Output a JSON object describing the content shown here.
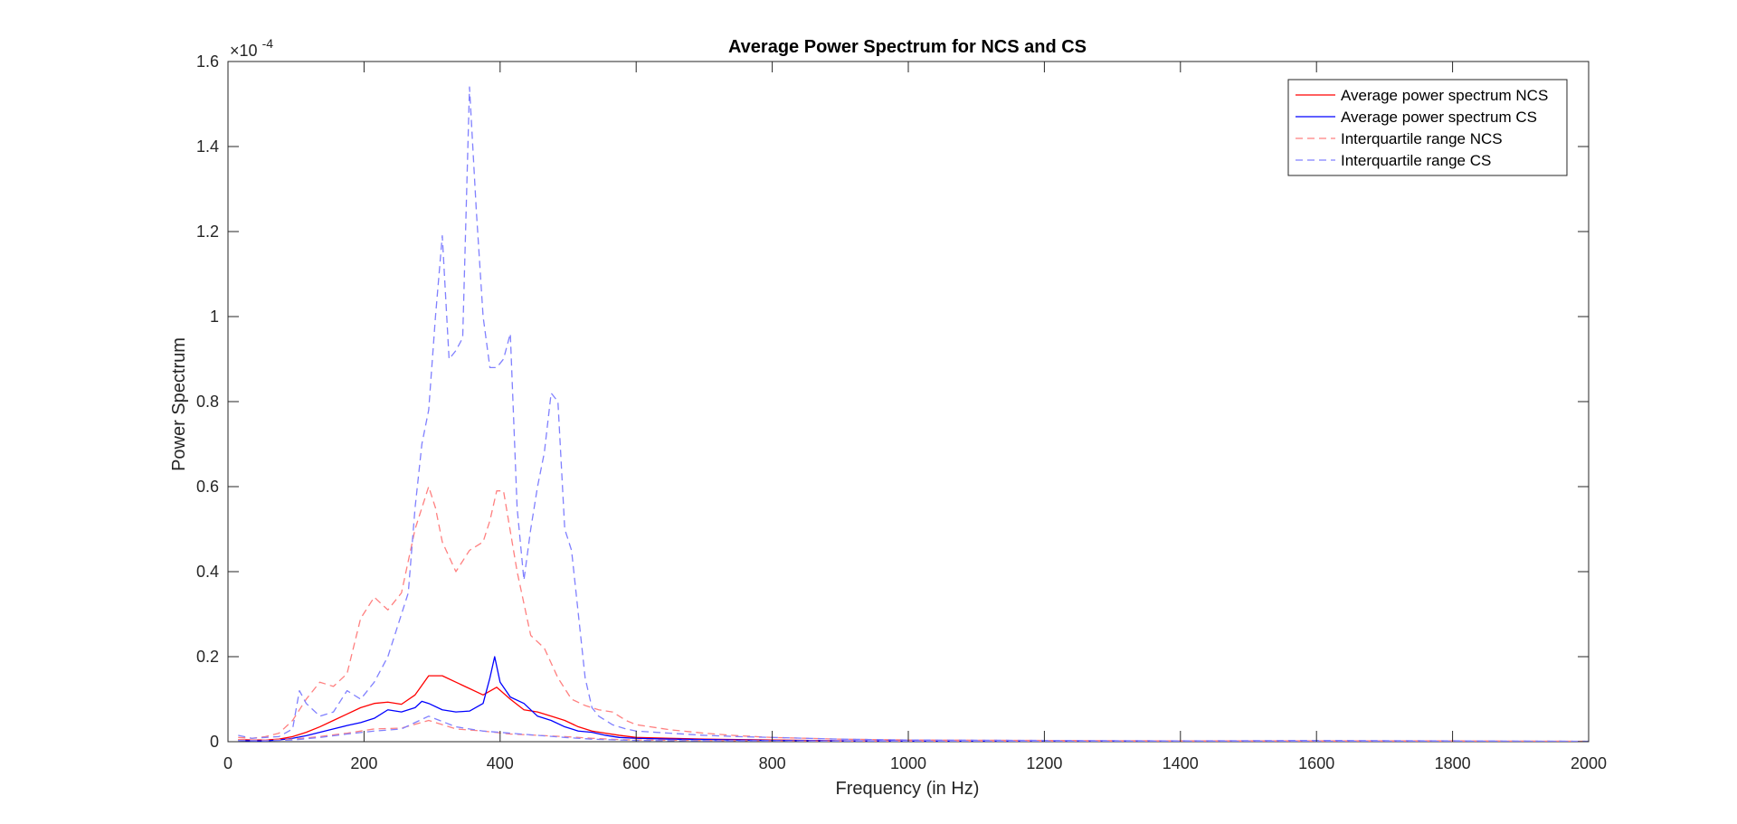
{
  "chart_data": {
    "type": "line",
    "title": "Average Power Spectrum for NCS and CS",
    "xlabel": "Frequency (in Hz)",
    "ylabel": "Power Spectrum",
    "y_exponent_label": "×10",
    "y_exponent_power": "-4",
    "xlim": [
      0,
      2000
    ],
    "ylim": [
      0,
      1.6
    ],
    "y_scale_note": "values shown in units of 1e-4",
    "x_ticks": [
      "0",
      "200",
      "400",
      "600",
      "800",
      "1000",
      "1200",
      "1400",
      "1600",
      "1800",
      "2000"
    ],
    "y_ticks": [
      "0",
      "0.2",
      "0.4",
      "0.6",
      "0.8",
      "1",
      "1.2",
      "1.4",
      "1.6"
    ],
    "grid": false,
    "legend_position": "top-right",
    "series": [
      {
        "name": "Average power spectrum NCS",
        "color": "#ff0000",
        "dash": "solid",
        "x": [
          15,
          35,
          55,
          75,
          95,
          115,
          135,
          155,
          175,
          195,
          215,
          235,
          255,
          275,
          295,
          315,
          335,
          355,
          375,
          395,
          415,
          435,
          455,
          475,
          495,
          515,
          535,
          555,
          575,
          600,
          650,
          700,
          750,
          800,
          900,
          1000,
          1200,
          1400,
          1600,
          1800,
          2000
        ],
        "y": [
          0.005,
          0.004,
          0.004,
          0.006,
          0.012,
          0.022,
          0.035,
          0.05,
          0.065,
          0.08,
          0.09,
          0.093,
          0.088,
          0.11,
          0.155,
          0.155,
          0.14,
          0.125,
          0.11,
          0.128,
          0.1,
          0.075,
          0.07,
          0.06,
          0.05,
          0.035,
          0.025,
          0.02,
          0.015,
          0.01,
          0.008,
          0.006,
          0.005,
          0.004,
          0.002,
          0.0015,
          0.001,
          0.001,
          0.001,
          0.001,
          0.0005
        ]
      },
      {
        "name": "Average power spectrum CS",
        "color": "#0000ff",
        "dash": "solid",
        "x": [
          15,
          35,
          55,
          75,
          95,
          115,
          135,
          155,
          175,
          195,
          215,
          235,
          255,
          275,
          285,
          295,
          315,
          335,
          355,
          375,
          385,
          392,
          400,
          415,
          435,
          455,
          475,
          495,
          515,
          535,
          555,
          575,
          600,
          650,
          700,
          750,
          800,
          900,
          1000,
          1200,
          1400,
          1600,
          1800,
          2000
        ],
        "y": [
          0.003,
          0.002,
          0.002,
          0.004,
          0.008,
          0.014,
          0.022,
          0.03,
          0.038,
          0.045,
          0.055,
          0.075,
          0.07,
          0.08,
          0.095,
          0.09,
          0.075,
          0.07,
          0.072,
          0.09,
          0.15,
          0.2,
          0.14,
          0.105,
          0.09,
          0.06,
          0.05,
          0.035,
          0.025,
          0.022,
          0.015,
          0.01,
          0.008,
          0.006,
          0.005,
          0.004,
          0.003,
          0.002,
          0.0015,
          0.001,
          0.001,
          0.001,
          0.0005,
          0.0005
        ]
      },
      {
        "name": "Interquartile range NCS",
        "color": "#ff8080",
        "dash": "dashed",
        "x": [
          15,
          35,
          55,
          75,
          95,
          115,
          135,
          155,
          175,
          195,
          215,
          235,
          255,
          275,
          285,
          295,
          305,
          315,
          335,
          355,
          375,
          385,
          395,
          405,
          425,
          445,
          465,
          485,
          505,
          525,
          545,
          565,
          585,
          600,
          650,
          700,
          750,
          800,
          900,
          1000,
          1200,
          1400,
          1600,
          1800,
          2000
        ],
        "y": [
          0.01,
          0.008,
          0.012,
          0.02,
          0.05,
          0.1,
          0.14,
          0.13,
          0.16,
          0.29,
          0.34,
          0.31,
          0.35,
          0.5,
          0.55,
          0.6,
          0.55,
          0.47,
          0.4,
          0.45,
          0.47,
          0.52,
          0.59,
          0.59,
          0.4,
          0.25,
          0.22,
          0.15,
          0.1,
          0.085,
          0.075,
          0.07,
          0.05,
          0.04,
          0.028,
          0.02,
          0.014,
          0.01,
          0.006,
          0.004,
          0.003,
          0.002,
          0.002,
          0.002,
          0.001
        ]
      },
      {
        "name": "Interquartile range CS",
        "color": "#8080ff",
        "dash": "dashed",
        "x": [
          15,
          35,
          55,
          75,
          95,
          105,
          115,
          135,
          155,
          175,
          195,
          215,
          235,
          255,
          265,
          275,
          285,
          295,
          305,
          315,
          325,
          335,
          345,
          355,
          365,
          375,
          385,
          395,
          405,
          415,
          425,
          435,
          445,
          455,
          465,
          475,
          485,
          495,
          505,
          515,
          525,
          535,
          545,
          565,
          585,
          600,
          650,
          700,
          750,
          800,
          900,
          1000,
          1200,
          1400,
          1600,
          1800,
          2000
        ],
        "y": [
          0.015,
          0.008,
          0.01,
          0.012,
          0.03,
          0.12,
          0.09,
          0.06,
          0.07,
          0.12,
          0.1,
          0.14,
          0.2,
          0.3,
          0.35,
          0.55,
          0.7,
          0.78,
          1.0,
          1.19,
          0.9,
          0.92,
          0.95,
          1.54,
          1.25,
          1.0,
          0.88,
          0.88,
          0.9,
          0.96,
          0.55,
          0.38,
          0.5,
          0.6,
          0.68,
          0.82,
          0.8,
          0.5,
          0.45,
          0.3,
          0.15,
          0.08,
          0.06,
          0.04,
          0.03,
          0.025,
          0.02,
          0.015,
          0.012,
          0.01,
          0.006,
          0.004,
          0.003,
          0.002,
          0.003,
          0.002,
          0.001
        ]
      },
      {
        "name": "NCS lower quartile",
        "color": "#ff8080",
        "dash": "dashed",
        "legend": false,
        "x": [
          15,
          55,
          95,
          135,
          175,
          215,
          255,
          295,
          335,
          375,
          415,
          455,
          495,
          535,
          575,
          600,
          700,
          800,
          1000,
          1400,
          2000
        ],
        "y": [
          0.005,
          0.004,
          0.006,
          0.012,
          0.02,
          0.03,
          0.032,
          0.05,
          0.03,
          0.025,
          0.018,
          0.015,
          0.012,
          0.008,
          0.005,
          0.004,
          0.003,
          0.002,
          0.001,
          0.001,
          0.0005
        ]
      },
      {
        "name": "CS lower quartile",
        "color": "#8080ff",
        "dash": "dashed",
        "legend": false,
        "x": [
          15,
          55,
          95,
          135,
          175,
          215,
          255,
          295,
          335,
          375,
          415,
          455,
          495,
          535,
          575,
          600,
          700,
          800,
          1000,
          1400,
          2000
        ],
        "y": [
          0.003,
          0.002,
          0.004,
          0.01,
          0.018,
          0.025,
          0.03,
          0.06,
          0.035,
          0.025,
          0.02,
          0.015,
          0.01,
          0.006,
          0.004,
          0.003,
          0.002,
          0.002,
          0.001,
          0.001,
          0.0005
        ]
      }
    ]
  }
}
